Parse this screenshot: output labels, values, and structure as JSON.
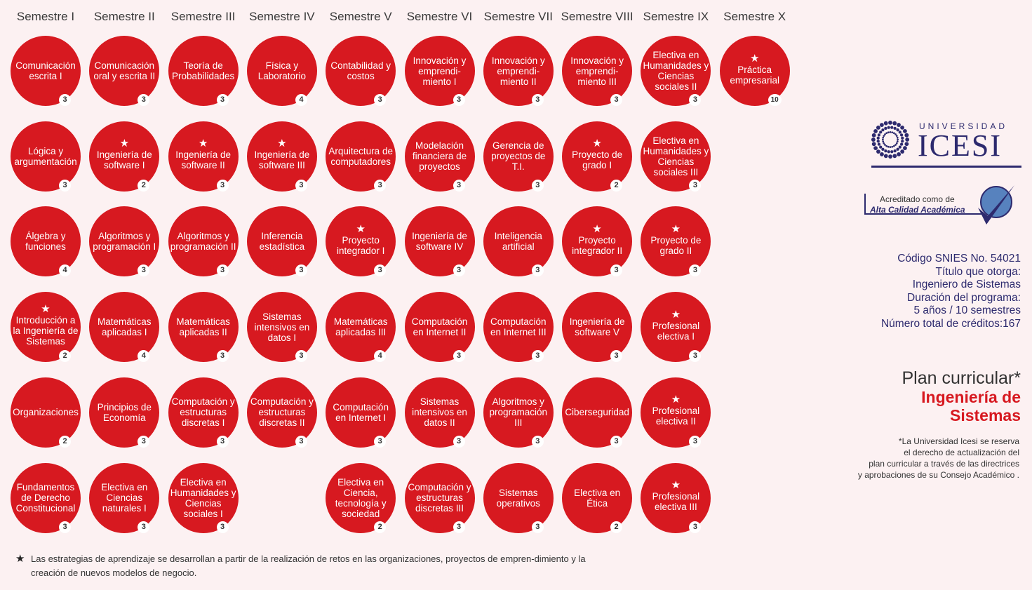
{
  "semesters": [
    "Semestre I",
    "Semestre II",
    "Semestre III",
    "Semestre IV",
    "Semestre V",
    "Semestre VI",
    "Semestre VII",
    "Semestre VIII",
    "Semestre IX",
    "Semestre X"
  ],
  "courses": [
    {
      "col": 0,
      "row": 0,
      "name": "Comunicación escrita I",
      "credits": "3",
      "star": false
    },
    {
      "col": 0,
      "row": 1,
      "name": "Lógica y argumentación",
      "credits": "3",
      "star": false
    },
    {
      "col": 0,
      "row": 2,
      "name": "Álgebra y funciones",
      "credits": "4",
      "star": false
    },
    {
      "col": 0,
      "row": 3,
      "name": "Introducción a la Ingeniería de Sistemas",
      "credits": "2",
      "star": true
    },
    {
      "col": 0,
      "row": 4,
      "name": "Organizaciones",
      "credits": "2",
      "star": false
    },
    {
      "col": 0,
      "row": 5,
      "name": "Fundamentos de Derecho Constitucional",
      "credits": "3",
      "star": false
    },
    {
      "col": 1,
      "row": 0,
      "name": "Comunicación oral y escrita II",
      "credits": "3",
      "star": false
    },
    {
      "col": 1,
      "row": 1,
      "name": "Ingeniería de software I",
      "credits": "2",
      "star": true
    },
    {
      "col": 1,
      "row": 2,
      "name": "Algoritmos y programación I",
      "credits": "3",
      "star": false
    },
    {
      "col": 1,
      "row": 3,
      "name": "Matemáticas aplicadas I",
      "credits": "4",
      "star": false
    },
    {
      "col": 1,
      "row": 4,
      "name": "Principios de Economía",
      "credits": "3",
      "star": false
    },
    {
      "col": 1,
      "row": 5,
      "name": "Electiva en Ciencias naturales I",
      "credits": "3",
      "star": false
    },
    {
      "col": 2,
      "row": 0,
      "name": "Teoría de Probabilidades",
      "credits": "3",
      "star": false
    },
    {
      "col": 2,
      "row": 1,
      "name": "Ingeniería de software II",
      "credits": "3",
      "star": true
    },
    {
      "col": 2,
      "row": 2,
      "name": "Algoritmos y programación II",
      "credits": "3",
      "star": false
    },
    {
      "col": 2,
      "row": 3,
      "name": "Matemáticas aplicadas II",
      "credits": "3",
      "star": false
    },
    {
      "col": 2,
      "row": 4,
      "name": "Computación y estructuras discretas I",
      "credits": "3",
      "star": false
    },
    {
      "col": 2,
      "row": 5,
      "name": "Electiva en Humanidades y Ciencias sociales I",
      "credits": "3",
      "star": false
    },
    {
      "col": 3,
      "row": 0,
      "name": "Física y Laboratorio",
      "credits": "4",
      "star": false
    },
    {
      "col": 3,
      "row": 1,
      "name": "Ingeniería de software III",
      "credits": "3",
      "star": true
    },
    {
      "col": 3,
      "row": 2,
      "name": "Inferencia estadística",
      "credits": "3",
      "star": false
    },
    {
      "col": 3,
      "row": 3,
      "name": "Sistemas intensivos en datos I",
      "credits": "3",
      "star": false
    },
    {
      "col": 3,
      "row": 4,
      "name": "Computación y estructuras discretas II",
      "credits": "3",
      "star": false
    },
    {
      "col": 4,
      "row": 0,
      "name": "Contabilidad y costos",
      "credits": "3",
      "star": false
    },
    {
      "col": 4,
      "row": 1,
      "name": "Arquitectura de computadores",
      "credits": "3",
      "star": false
    },
    {
      "col": 4,
      "row": 2,
      "name": "Proyecto integrador I",
      "credits": "3",
      "star": true
    },
    {
      "col": 4,
      "row": 3,
      "name": "Matemáticas aplicadas III",
      "credits": "4",
      "star": false
    },
    {
      "col": 4,
      "row": 4,
      "name": "Computación en Internet I",
      "credits": "3",
      "star": false
    },
    {
      "col": 4,
      "row": 5,
      "name": "Electiva en Ciencia, tecnología y sociedad",
      "credits": "2",
      "star": false
    },
    {
      "col": 5,
      "row": 0,
      "name": "Innovación y emprendi-miento I",
      "credits": "3",
      "star": false
    },
    {
      "col": 5,
      "row": 1,
      "name": "Modelación financiera de proyectos",
      "credits": "3",
      "star": false
    },
    {
      "col": 5,
      "row": 2,
      "name": "Ingeniería de software IV",
      "credits": "3",
      "star": false
    },
    {
      "col": 5,
      "row": 3,
      "name": "Computación en Internet II",
      "credits": "3",
      "star": false
    },
    {
      "col": 5,
      "row": 4,
      "name": "Sistemas intensivos en datos II",
      "credits": "3",
      "star": false
    },
    {
      "col": 5,
      "row": 5,
      "name": "Computación y estructuras discretas III",
      "credits": "3",
      "star": false
    },
    {
      "col": 6,
      "row": 0,
      "name": "Innovación y emprendi-miento II",
      "credits": "3",
      "star": false
    },
    {
      "col": 6,
      "row": 1,
      "name": "Gerencia de proyectos de T.I.",
      "credits": "3",
      "star": false
    },
    {
      "col": 6,
      "row": 2,
      "name": "Inteligencia artificial",
      "credits": "3",
      "star": false
    },
    {
      "col": 6,
      "row": 3,
      "name": "Computación en Internet III",
      "credits": "3",
      "star": false
    },
    {
      "col": 6,
      "row": 4,
      "name": "Algoritmos y programación III",
      "credits": "3",
      "star": false
    },
    {
      "col": 6,
      "row": 5,
      "name": "Sistemas operativos",
      "credits": "3",
      "star": false
    },
    {
      "col": 7,
      "row": 0,
      "name": "Innovación y emprendi-miento III",
      "credits": "3",
      "star": false
    },
    {
      "col": 7,
      "row": 1,
      "name": "Proyecto de grado I",
      "credits": "2",
      "star": true
    },
    {
      "col": 7,
      "row": 2,
      "name": "Proyecto integrador II",
      "credits": "3",
      "star": true
    },
    {
      "col": 7,
      "row": 3,
      "name": "Ingeniería de software V",
      "credits": "3",
      "star": false
    },
    {
      "col": 7,
      "row": 4,
      "name": "Ciberseguridad",
      "credits": "3",
      "star": false
    },
    {
      "col": 7,
      "row": 5,
      "name": "Electiva en Ética",
      "credits": "2",
      "star": false
    },
    {
      "col": 8,
      "row": 0,
      "name": "Electiva en Humanidades y Ciencias sociales II",
      "credits": "3",
      "star": false
    },
    {
      "col": 8,
      "row": 1,
      "name": "Electiva en Humanidades y Ciencias sociales III",
      "credits": "3",
      "star": false
    },
    {
      "col": 8,
      "row": 2,
      "name": "Proyecto de grado II",
      "credits": "3",
      "star": true
    },
    {
      "col": 8,
      "row": 3,
      "name": "Profesional electiva I",
      "credits": "3",
      "star": true
    },
    {
      "col": 8,
      "row": 4,
      "name": "Profesional electiva II",
      "credits": "3",
      "star": true
    },
    {
      "col": 8,
      "row": 5,
      "name": "Profesional electiva III",
      "credits": "3",
      "star": true
    },
    {
      "col": 9,
      "row": 0,
      "name": "Práctica empresarial",
      "credits": "10",
      "star": true
    }
  ],
  "legend": {
    "star": "★",
    "text": "Las estrategias de aprendizaje se desarrollan a partir de la realización de retos en las organizaciones, proyectos de empren-dimiento y la creación de nuevos modelos de negocio."
  },
  "logo": {
    "top": "UNIVERSIDAD",
    "name": "ICESI"
  },
  "accreditation": {
    "line1": "Acreditado como de",
    "line2": "Alta Calidad Académica"
  },
  "info": {
    "snies": "Código SNIES No. 54021",
    "title_label": "Título que otorga:",
    "title_value": "Ingeniero de Sistemas",
    "duration_label": "Duración del programa:",
    "duration_value": "5 años / 10 semestres",
    "credits": "Número total de créditos:167"
  },
  "plan": {
    "line1": "Plan curricular*",
    "line2": "Ingeniería de",
    "line3": "Sistemas"
  },
  "note": {
    "line1": "*La Universidad Icesi se reserva",
    "line2": "el derecho de actualización del",
    "line3": "plan curricular a través de las directrices",
    "line4": "y aprobaciones de su Consejo Académico ."
  },
  "colors": {
    "circle": "#d71920",
    "navy": "#2d2a6e",
    "background": "#fcf1f2"
  }
}
